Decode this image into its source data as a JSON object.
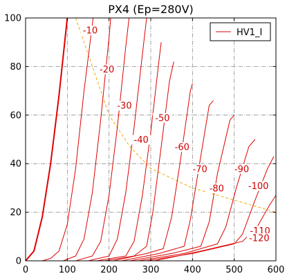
{
  "chart_data": {
    "type": "line",
    "title": "PX4 (Ep=280V)",
    "xlabel": "",
    "ylabel": "",
    "xlim": [
      0,
      600
    ],
    "ylim": [
      0,
      100
    ],
    "xticks": [
      0,
      100,
      200,
      300,
      400,
      500,
      600
    ],
    "yticks": [
      0,
      20,
      40,
      60,
      80,
      100
    ],
    "grid": true,
    "legend": {
      "position": "top-right",
      "entries": [
        "HV1_I"
      ]
    },
    "colors": {
      "curve": "#dd0000",
      "load_line": "#f2a900",
      "grid": "#8c8c8c"
    },
    "series": [
      {
        "name": "HV1_I",
        "grid_voltage": "0",
        "label": "",
        "points": [
          [
            0,
            0
          ],
          [
            20,
            4
          ],
          [
            40,
            18
          ],
          [
            60,
            40
          ],
          [
            80,
            68
          ],
          [
            100,
            100
          ]
        ]
      },
      {
        "grid_voltage": "-10",
        "label": "-10",
        "points": [
          [
            40,
            0
          ],
          [
            60,
            1
          ],
          [
            80,
            4
          ],
          [
            100,
            15
          ],
          [
            120,
            38
          ],
          [
            140,
            70
          ],
          [
            162,
            100
          ]
        ]
      },
      {
        "grid_voltage": "-20",
        "label": "-20",
        "points": [
          [
            90,
            0
          ],
          [
            120,
            2
          ],
          [
            140,
            9
          ],
          [
            160,
            28
          ],
          [
            180,
            58
          ],
          [
            200,
            92
          ],
          [
            204,
            100
          ]
        ]
      },
      {
        "grid_voltage": "-30",
        "label": "-30",
        "points": [
          [
            120,
            0
          ],
          [
            160,
            2
          ],
          [
            180,
            8
          ],
          [
            200,
            27
          ],
          [
            220,
            55
          ],
          [
            240,
            88
          ],
          [
            248,
            100
          ]
        ]
      },
      {
        "grid_voltage": "-40",
        "label": "-40",
        "points": [
          [
            150,
            0
          ],
          [
            200,
            2
          ],
          [
            220,
            9
          ],
          [
            240,
            28
          ],
          [
            260,
            55
          ],
          [
            280,
            85
          ],
          [
            290,
            100
          ]
        ]
      },
      {
        "grid_voltage": "-50",
        "label": "-50",
        "points": [
          [
            170,
            0
          ],
          [
            240,
            2
          ],
          [
            260,
            8
          ],
          [
            280,
            27
          ],
          [
            300,
            53
          ],
          [
            320,
            83
          ],
          [
            325,
            90
          ]
        ]
      },
      {
        "grid_voltage": "-60",
        "label": "-60",
        "points": [
          [
            190,
            0
          ],
          [
            260,
            2
          ],
          [
            290,
            6
          ],
          [
            305,
            20
          ],
          [
            325,
            47
          ],
          [
            345,
            74
          ],
          [
            355,
            82
          ]
        ]
      },
      {
        "grid_voltage": "-70",
        "label": "-70",
        "points": [
          [
            210,
            0
          ],
          [
            290,
            3
          ],
          [
            330,
            5
          ],
          [
            350,
            18
          ],
          [
            370,
            40
          ],
          [
            395,
            70
          ],
          [
            400,
            73
          ]
        ]
      },
      {
        "grid_voltage": "-80",
        "label": "-80",
        "points": [
          [
            230,
            0
          ],
          [
            320,
            3
          ],
          [
            380,
            6
          ],
          [
            395,
            17
          ],
          [
            415,
            38
          ],
          [
            440,
            64
          ],
          [
            450,
            66
          ]
        ]
      },
      {
        "grid_voltage": "-90",
        "label": "-90",
        "points": [
          [
            250,
            0
          ],
          [
            350,
            3
          ],
          [
            420,
            6
          ],
          [
            440,
            16
          ],
          [
            460,
            36
          ],
          [
            490,
            58
          ],
          [
            500,
            60
          ]
        ]
      },
      {
        "grid_voltage": "-100",
        "label": "-100",
        "points": [
          [
            270,
            0
          ],
          [
            380,
            3
          ],
          [
            460,
            7
          ],
          [
            480,
            14
          ],
          [
            505,
            30
          ],
          [
            535,
            47
          ],
          [
            550,
            50
          ]
        ]
      },
      {
        "grid_voltage": "-110",
        "label": "-110",
        "points": [
          [
            290,
            0
          ],
          [
            400,
            3
          ],
          [
            500,
            7
          ],
          [
            520,
            11
          ],
          [
            550,
            25
          ],
          [
            580,
            38
          ],
          [
            595,
            43
          ]
        ]
      },
      {
        "grid_voltage": "-120",
        "label": "-120",
        "points": [
          [
            310,
            0
          ],
          [
            420,
            4
          ],
          [
            520,
            8
          ],
          [
            555,
            14
          ],
          [
            585,
            23
          ],
          [
            600,
            27
          ]
        ]
      }
    ],
    "load_line": {
      "points": [
        [
          120,
          100
        ],
        [
          150,
          85
        ],
        [
          200,
          60
        ],
        [
          250,
          47
        ],
        [
          300,
          38
        ],
        [
          400,
          30
        ],
        [
          500,
          25
        ],
        [
          600,
          20
        ]
      ]
    },
    "annotations": [
      {
        "text": "-10",
        "x": 155,
        "y": 94
      },
      {
        "text": "-20",
        "x": 195,
        "y": 78
      },
      {
        "text": "-30",
        "x": 237,
        "y": 63
      },
      {
        "text": "-40",
        "x": 277,
        "y": 49
      },
      {
        "text": "-50",
        "x": 328,
        "y": 58
      },
      {
        "text": "-60",
        "x": 375,
        "y": 46
      },
      {
        "text": "-70",
        "x": 418,
        "y": 37
      },
      {
        "text": "-80",
        "x": 458,
        "y": 29
      },
      {
        "text": "-90",
        "x": 518,
        "y": 37
      },
      {
        "text": "-100",
        "x": 558,
        "y": 30
      },
      {
        "text": "-110",
        "x": 562,
        "y": 11.5
      },
      {
        "text": "-120",
        "x": 560,
        "y": 8.5
      }
    ]
  }
}
